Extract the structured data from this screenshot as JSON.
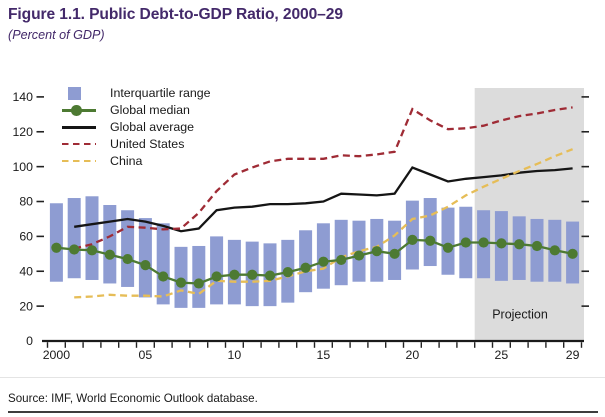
{
  "header": {
    "title": "Figure 1.1. Public Debt-to-GDP Ratio, 2000–29",
    "subtitle": "(Percent of GDP)"
  },
  "legend": {
    "items": [
      {
        "label": "Interquartile range",
        "swatch": "square",
        "color": "#8e9cd2"
      },
      {
        "label": "Global median",
        "swatch": "line-dot",
        "color": "#4d7a32"
      },
      {
        "label": "Global average",
        "swatch": "line",
        "color": "#151515"
      },
      {
        "label": "United States",
        "swatch": "dashed",
        "color": "#9f2b35"
      },
      {
        "label": "China",
        "swatch": "dashed",
        "color": "#e6bd57"
      }
    ]
  },
  "chart_data": {
    "type": "combo-bar-line",
    "title": "Public Debt-to-GDP Ratio, 2000-29",
    "ylabel": "Percent of GDP",
    "x": [
      2000,
      2001,
      2002,
      2003,
      2004,
      2005,
      2006,
      2007,
      2008,
      2009,
      2010,
      2011,
      2012,
      2013,
      2014,
      2015,
      2016,
      2017,
      2018,
      2019,
      2020,
      2021,
      2022,
      2023,
      2024,
      2025,
      2026,
      2027,
      2028,
      2029
    ],
    "x_tick_labels": [
      {
        "year": 2000,
        "label": "2000"
      },
      {
        "year": 2005,
        "label": "05"
      },
      {
        "year": 2010,
        "label": "10"
      },
      {
        "year": 2015,
        "label": "15"
      },
      {
        "year": 2020,
        "label": "20"
      },
      {
        "year": 2025,
        "label": "25"
      },
      {
        "year": 2029,
        "label": "29"
      }
    ],
    "y_axis": {
      "min": 0,
      "max": 140,
      "step": 20,
      "ticks": [
        0,
        20,
        40,
        60,
        80,
        100,
        120,
        140
      ]
    },
    "grid": false,
    "legend_position": "top-left-inside",
    "series": [
      {
        "name": "Interquartile range",
        "type": "bar-range",
        "color": "#8e9cd2",
        "low": [
          34,
          36,
          35,
          33,
          31,
          25,
          21,
          19,
          19,
          21,
          21,
          20,
          20,
          22,
          28,
          30,
          32,
          34,
          34,
          35,
          41,
          43,
          38,
          36,
          36,
          34.5,
          35,
          34,
          34,
          33
        ],
        "high": [
          79,
          82,
          83,
          78,
          75,
          70.5,
          67.5,
          54,
          54.5,
          60,
          58,
          57,
          56,
          58,
          63.5,
          67.5,
          69.5,
          69,
          70,
          69,
          80.5,
          82,
          76.5,
          77,
          75,
          74.5,
          71.5,
          70,
          69.5,
          68.5
        ]
      },
      {
        "name": "Global median",
        "type": "line-marker",
        "color": "#4d7a32",
        "values": [
          53.5,
          52.5,
          52,
          49.5,
          47,
          43.5,
          37,
          33.5,
          33,
          37,
          38,
          38,
          37.5,
          39.5,
          42,
          45.5,
          46.5,
          49,
          51.5,
          50,
          58,
          57.5,
          53.5,
          56.5,
          56.5,
          56,
          55.5,
          54.5,
          52,
          50
        ]
      },
      {
        "name": "Global average",
        "type": "line",
        "color": "#151515",
        "values": [
          null,
          65.5,
          67,
          68.5,
          70,
          68.5,
          66,
          63,
          64.5,
          75,
          76.5,
          77,
          78.5,
          78.5,
          79,
          80,
          84.5,
          84,
          83.5,
          84.5,
          99.5,
          95.5,
          91.5,
          93,
          94,
          95,
          96.5,
          97.5,
          98,
          99
        ]
      },
      {
        "name": "United States",
        "type": "line-dashed",
        "color": "#9f2b35",
        "values": [
          null,
          53,
          55.5,
          60,
          65.5,
          65,
          64,
          64.5,
          73.5,
          86,
          95.5,
          99.5,
          103,
          104.5,
          104.5,
          104.5,
          106.5,
          106,
          107,
          108.5,
          133,
          126.5,
          121.5,
          122,
          123.5,
          126.5,
          129,
          130.5,
          132.5,
          134
        ]
      },
      {
        "name": "China",
        "type": "line-dashed",
        "color": "#e6bd57",
        "values": [
          null,
          25,
          25.5,
          26.5,
          26,
          26,
          25.5,
          29,
          27,
          34.5,
          34,
          34,
          34.5,
          37,
          40,
          41.5,
          48,
          51.5,
          54,
          60.5,
          70,
          72,
          77,
          83.5,
          88.5,
          93,
          97.5,
          101.5,
          106,
          110
        ]
      }
    ],
    "projection": {
      "label": "Projection",
      "start_year": 2024,
      "fill": "#dcdcdc"
    }
  },
  "footer": {
    "source": "Source: IMF, World Economic Outlook database."
  }
}
